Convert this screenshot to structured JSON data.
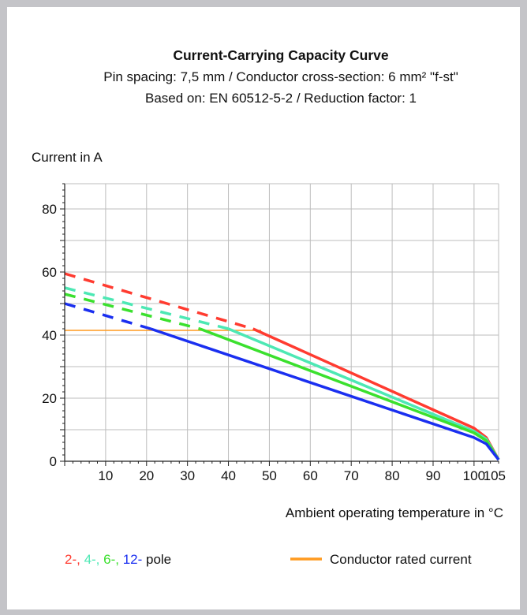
{
  "chart_data": {
    "type": "line",
    "title": "Current-Carrying Capacity Curve",
    "subtitle_1": "Pin spacing: 7,5 mm / Conductor cross-section: 6 mm² \"f-st\"",
    "subtitle_2": "Based on: EN 60512-5-2 / Reduction factor: 1",
    "ylabel": "Current in A",
    "xlabel": "Ambient operating temperature in °C",
    "xlim": [
      0,
      106
    ],
    "ylim": [
      0,
      88
    ],
    "x_ticks": [
      10,
      20,
      30,
      40,
      50,
      60,
      70,
      80,
      90,
      100,
      105
    ],
    "y_ticks": [
      0,
      20,
      40,
      60,
      80
    ],
    "grid": true,
    "series": [
      {
        "name": "2-",
        "color": "#ff3b30",
        "dashed": [
          [
            0,
            59.5
          ],
          [
            46,
            42
          ]
        ],
        "solid": [
          [
            46,
            42
          ],
          [
            100,
            10.5
          ],
          [
            103,
            7.5
          ],
          [
            106,
            0.5
          ]
        ]
      },
      {
        "name": "4-",
        "color": "#4de8b4",
        "dashed": [
          [
            0,
            55
          ],
          [
            40,
            42
          ]
        ],
        "solid": [
          [
            40,
            42
          ],
          [
            100,
            9.5
          ],
          [
            103,
            7
          ],
          [
            106,
            0.5
          ]
        ]
      },
      {
        "name": "6-",
        "color": "#3be02e",
        "dashed": [
          [
            0,
            53
          ],
          [
            33,
            42
          ]
        ],
        "solid": [
          [
            33,
            42
          ],
          [
            100,
            9
          ],
          [
            103,
            6.5
          ],
          [
            106,
            0.5
          ]
        ]
      },
      {
        "name": "12-",
        "color": "#1a2ff0",
        "dashed": [
          [
            0,
            50
          ],
          [
            21,
            42
          ]
        ],
        "solid": [
          [
            21,
            42
          ],
          [
            100,
            7.5
          ],
          [
            103,
            5.5
          ],
          [
            106,
            0.5
          ]
        ]
      }
    ],
    "rated_current": {
      "label": "Conductor rated current",
      "color": "#ff9a1f",
      "value": 41.5,
      "x_range": [
        0,
        48
      ]
    },
    "legend": {
      "pole_suffix": "pole",
      "separator": ", "
    }
  }
}
